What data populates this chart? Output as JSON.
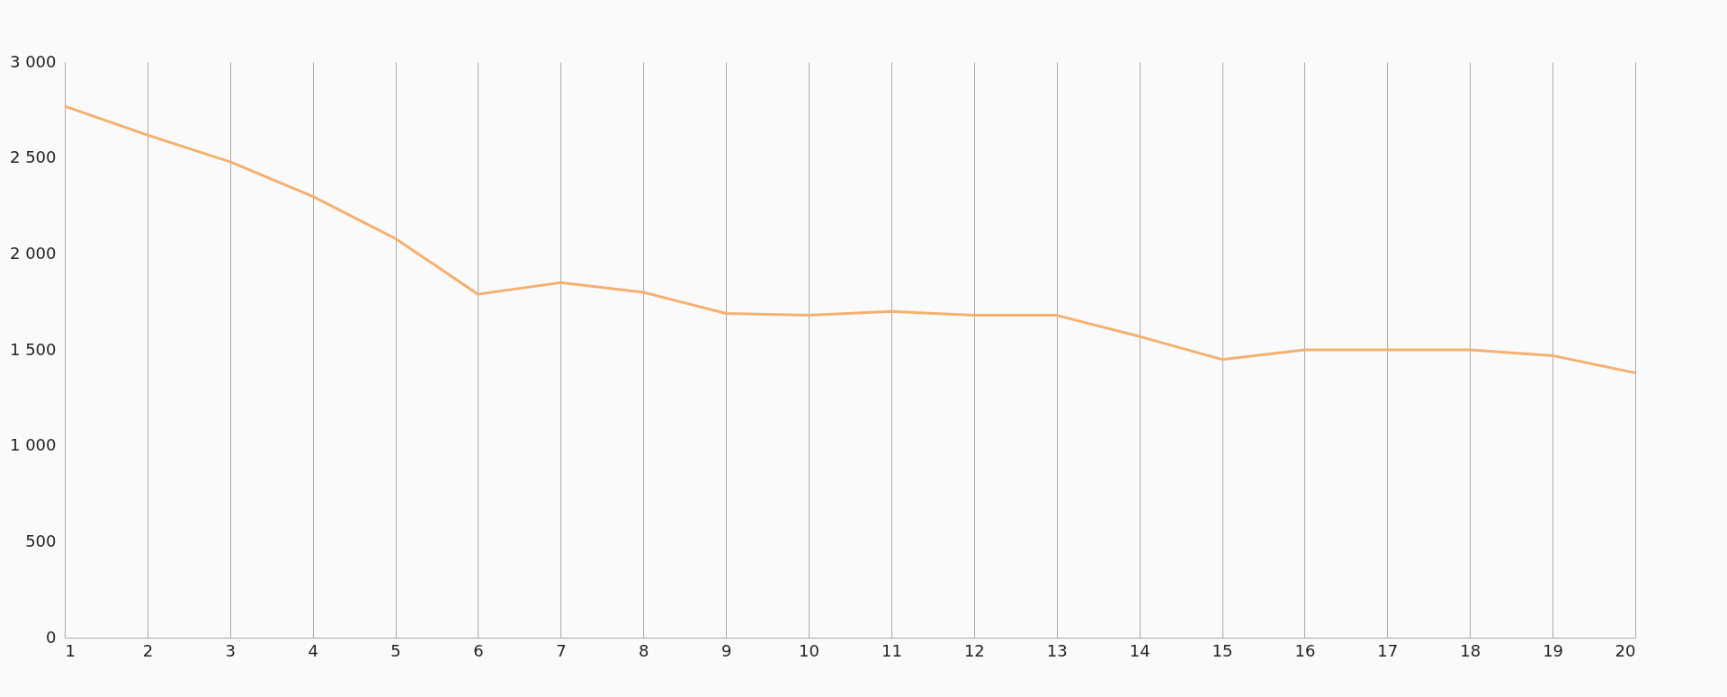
{
  "chart_data": {
    "type": "line",
    "x": [
      1,
      2,
      3,
      4,
      5,
      6,
      7,
      8,
      9,
      10,
      11,
      12,
      13,
      14,
      15,
      16,
      17,
      18,
      19,
      20
    ],
    "series": [
      {
        "color": "#f5b06f",
        "values": [
          2770,
          2620,
          2480,
          2300,
          2080,
          1790,
          1850,
          1800,
          1690,
          1680,
          1700,
          1680,
          1680,
          1570,
          1450,
          1500,
          1500,
          1500,
          1470,
          1380
        ]
      }
    ],
    "xlim": [
      1,
      20
    ],
    "xticks": [
      1,
      2,
      3,
      4,
      5,
      6,
      7,
      8,
      9,
      10,
      11,
      12,
      13,
      14,
      15,
      16,
      17,
      18,
      19,
      20
    ],
    "ylim": [
      0,
      3000
    ],
    "yticks": [
      0,
      500,
      {
        "value": 1000,
        "label": "1 000"
      },
      {
        "value": 1500,
        "label": "1 500"
      },
      {
        "value": 2000,
        "label": "2 000"
      },
      {
        "value": 2500,
        "label": "2 500"
      },
      {
        "value": 3000,
        "label": "3 000"
      }
    ],
    "grid": "x",
    "marker": "none",
    "line_style": "solid",
    "legend": false
  }
}
